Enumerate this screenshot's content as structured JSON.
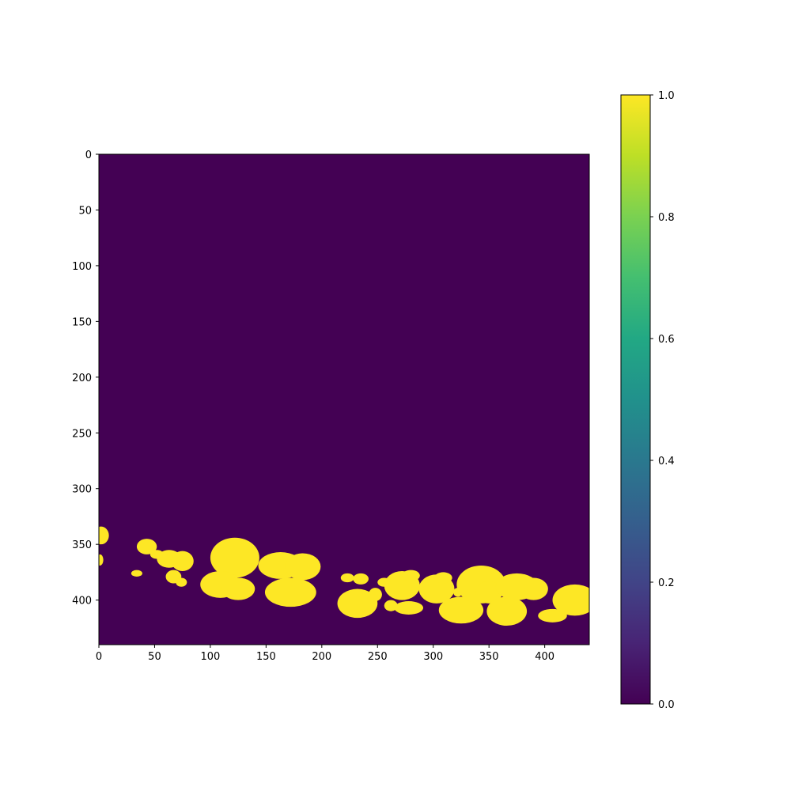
{
  "chart_data": {
    "type": "heatmap",
    "title": "",
    "xlabel": "",
    "ylabel": "",
    "xlim": [
      0,
      440
    ],
    "ylim": [
      440,
      0
    ],
    "xticks": [
      0,
      50,
      100,
      150,
      200,
      250,
      300,
      350,
      400
    ],
    "yticks": [
      0,
      50,
      100,
      150,
      200,
      250,
      300,
      350,
      400
    ],
    "background_value": 0,
    "colormap": "viridis",
    "colors": {
      "low": "#440154",
      "high": "#fde725"
    },
    "colorbar": {
      "range": [
        0.0,
        1.0
      ],
      "ticks": [
        "0.0",
        "0.2",
        "0.4",
        "0.6",
        "0.8",
        "1.0"
      ],
      "stops": [
        "#440154",
        "#482475",
        "#414487",
        "#355f8d",
        "#2a788e",
        "#21918c",
        "#22a884",
        "#44bf70",
        "#7ad151",
        "#bddf26",
        "#fde725"
      ]
    },
    "regions_value_1": [
      {
        "cx": 2,
        "cy": 342,
        "rx": 7,
        "ry": 8
      },
      {
        "cx": 1,
        "cy": 364,
        "rx": 3,
        "ry": 5
      },
      {
        "cx": 43,
        "cy": 352,
        "rx": 9,
        "ry": 7
      },
      {
        "cx": 52,
        "cy": 359,
        "rx": 6,
        "ry": 4
      },
      {
        "cx": 63,
        "cy": 363,
        "rx": 11,
        "ry": 8
      },
      {
        "cx": 75,
        "cy": 365,
        "rx": 10,
        "ry": 9
      },
      {
        "cx": 67,
        "cy": 379,
        "rx": 7,
        "ry": 6
      },
      {
        "cx": 74,
        "cy": 384,
        "rx": 5,
        "ry": 4
      },
      {
        "cx": 34,
        "cy": 376,
        "rx": 5,
        "ry": 3
      },
      {
        "cx": 122,
        "cy": 362,
        "rx": 22,
        "ry": 18
      },
      {
        "cx": 109,
        "cy": 386,
        "rx": 18,
        "ry": 12
      },
      {
        "cx": 125,
        "cy": 390,
        "rx": 15,
        "ry": 10
      },
      {
        "cx": 163,
        "cy": 369,
        "rx": 20,
        "ry": 12
      },
      {
        "cx": 183,
        "cy": 370,
        "rx": 16,
        "ry": 12
      },
      {
        "cx": 172,
        "cy": 393,
        "rx": 23,
        "ry": 13
      },
      {
        "cx": 223,
        "cy": 380,
        "rx": 6,
        "ry": 4
      },
      {
        "cx": 235,
        "cy": 381,
        "rx": 7,
        "ry": 5
      },
      {
        "cx": 232,
        "cy": 403,
        "rx": 18,
        "ry": 13
      },
      {
        "cx": 248,
        "cy": 395,
        "rx": 6,
        "ry": 6
      },
      {
        "cx": 256,
        "cy": 384,
        "rx": 6,
        "ry": 4
      },
      {
        "cx": 272,
        "cy": 387,
        "rx": 16,
        "ry": 13
      },
      {
        "cx": 280,
        "cy": 378,
        "rx": 8,
        "ry": 5
      },
      {
        "cx": 278,
        "cy": 407,
        "rx": 13,
        "ry": 6
      },
      {
        "cx": 262,
        "cy": 405,
        "rx": 6,
        "ry": 5
      },
      {
        "cx": 303,
        "cy": 390,
        "rx": 16,
        "ry": 13
      },
      {
        "cx": 309,
        "cy": 380,
        "rx": 8,
        "ry": 5
      },
      {
        "cx": 322,
        "cy": 393,
        "rx": 4,
        "ry": 4
      },
      {
        "cx": 325,
        "cy": 409,
        "rx": 20,
        "ry": 12
      },
      {
        "cx": 343,
        "cy": 386,
        "rx": 22,
        "ry": 17
      },
      {
        "cx": 350,
        "cy": 393,
        "rx": 12,
        "ry": 10
      },
      {
        "cx": 366,
        "cy": 410,
        "rx": 18,
        "ry": 13
      },
      {
        "cx": 375,
        "cy": 388,
        "rx": 19,
        "ry": 12
      },
      {
        "cx": 390,
        "cy": 390,
        "rx": 13,
        "ry": 10
      },
      {
        "cx": 407,
        "cy": 414,
        "rx": 13,
        "ry": 6
      },
      {
        "cx": 427,
        "cy": 400,
        "rx": 20,
        "ry": 14
      }
    ]
  }
}
